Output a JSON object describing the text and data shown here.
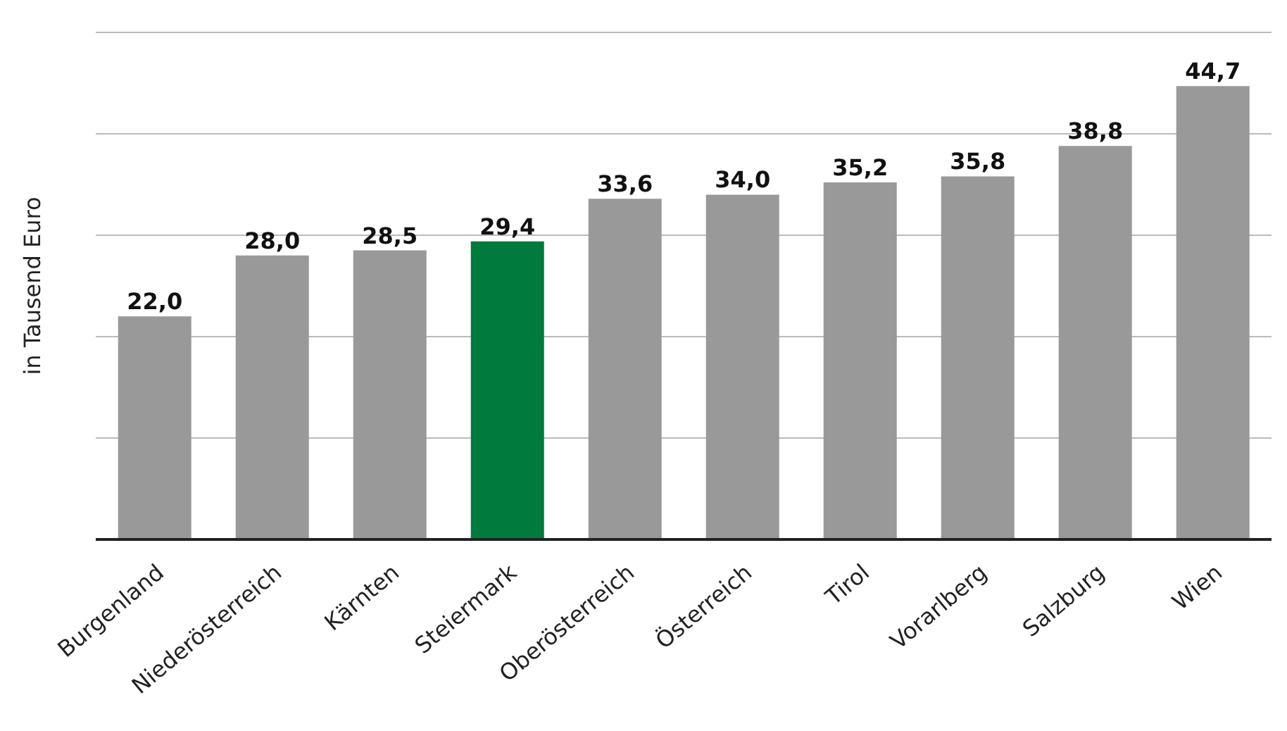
{
  "chart_data": {
    "type": "bar",
    "ylabel": "in Tausend Euro",
    "categories": [
      "Burgenland",
      "Niederösterreich",
      "Kärnten",
      "Steiermark",
      "Oberösterreich",
      "Österreich",
      "Tirol",
      "Vorarlberg",
      "Salzburg",
      "Wien"
    ],
    "values": [
      22.0,
      28.0,
      28.5,
      29.4,
      33.6,
      34.0,
      35.2,
      35.8,
      38.8,
      44.7
    ],
    "colors": [
      "#999999",
      "#999999",
      "#999999",
      "#007a3d",
      "#999999",
      "#999999",
      "#999999",
      "#999999",
      "#999999",
      "#999999"
    ],
    "value_labels": [
      "22,0",
      "28,0",
      "28,5",
      "29,4",
      "33,6",
      "34,0",
      "35,2",
      "35,8",
      "38,8",
      "44,7"
    ],
    "ylim": [
      0,
      50
    ],
    "yticks": [
      {
        "value": 0,
        "label": null
      },
      {
        "value": 10,
        "label": null
      },
      {
        "value": 20,
        "label": null
      },
      {
        "value": 30,
        "label": null
      },
      {
        "value": 40,
        "label": null
      },
      {
        "value": 50,
        "label": null
      }
    ],
    "grid": "y",
    "legend": false
  }
}
